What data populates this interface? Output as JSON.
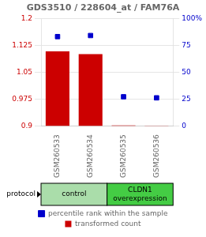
{
  "chart_data": {
    "type": "bar",
    "title": "GDS3510 / 228604_at / FAM76A",
    "categories": [
      "GSM260533",
      "GSM260534",
      "GSM260535",
      "GSM260536"
    ],
    "series": [
      {
        "name": "transformed count",
        "type": "bar",
        "color": "#CC0000",
        "values": [
          1.108,
          1.1,
          0.901,
          0.9
        ]
      },
      {
        "name": "percentile rank within the sample",
        "type": "scatter",
        "marker": "square",
        "axis": "y2",
        "color": "#0000CC",
        "values": [
          83,
          84,
          27,
          26
        ]
      }
    ],
    "ylim": [
      0.9,
      1.2
    ],
    "yticks": [
      0.9,
      0.975,
      1.05,
      1.125,
      1.2
    ],
    "y2lim": [
      0,
      100
    ],
    "y2ticks": [
      0,
      25,
      50,
      75,
      {
        "value": 100,
        "label": "100%"
      }
    ],
    "grid": true,
    "legend": "bottom",
    "groups": {
      "title": "protocol",
      "items": [
        {
          "label": "control",
          "color": "#aaddaa",
          "categories": [
            "GSM260533",
            "GSM260534"
          ]
        },
        {
          "label": "CLDN1\noverexpression",
          "color": "#44cc44",
          "categories": [
            "GSM260535",
            "GSM260536"
          ]
        }
      ]
    }
  }
}
